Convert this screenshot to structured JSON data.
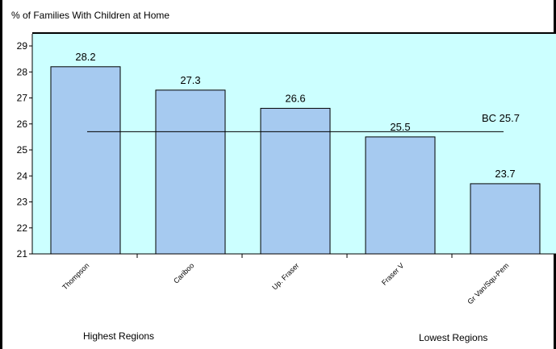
{
  "chart_data": {
    "type": "bar",
    "title": "% of Families With Children at Home",
    "categories": [
      "Thompson",
      "Cariboo",
      "Up. Fraser",
      "Fraser V",
      "Gr Van/Squ-Pem"
    ],
    "values": [
      28.2,
      27.3,
      26.6,
      25.5,
      23.7
    ],
    "value_labels": [
      "28.2",
      "27.3",
      "26.6",
      "25.5",
      "23.7"
    ],
    "ylim": [
      21,
      29
    ],
    "y_ticks": [
      21,
      22,
      23,
      24,
      25,
      26,
      27,
      28,
      29
    ],
    "grid": false,
    "reference_line": {
      "value": 25.7,
      "label": "BC 25.7"
    },
    "group_labels": {
      "left": "Highest Regions",
      "right": "Lowest Regions"
    },
    "colors": {
      "bar_fill": "#a6caf0",
      "bar_stroke": "#000000",
      "plot_bg": "#ccffff",
      "axis": "#000000"
    }
  }
}
